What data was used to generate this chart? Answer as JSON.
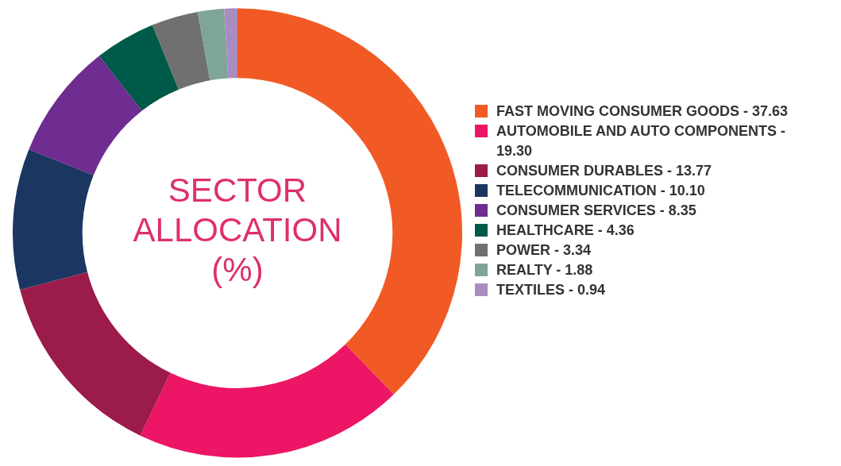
{
  "chart_data": {
    "type": "donut",
    "title": "SECTOR ALLOCATION (%)",
    "categories": [
      "FAST MOVING CONSUMER GOODS - 37.63",
      "AUTOMOBILE AND AUTO COMPONENTS - 19.30",
      "CONSUMER DURABLES - 13.77",
      "TELECOMMUNICATION - 10.10",
      "CONSUMER SERVICES - 8.35",
      "HEALTHCARE - 4.36",
      "POWER - 3.34",
      "REALTY - 1.88",
      "TEXTILES - 0.94"
    ],
    "values": [
      37.63,
      19.3,
      13.77,
      10.1,
      8.35,
      4.36,
      3.34,
      1.88,
      0.94
    ],
    "colors": [
      "#f15a24",
      "#ed1566",
      "#9b1b4b",
      "#1b3660",
      "#6f2c91",
      "#005a4a",
      "#707070",
      "#7fa59a",
      "#a98cc0"
    ],
    "legend": "right"
  }
}
